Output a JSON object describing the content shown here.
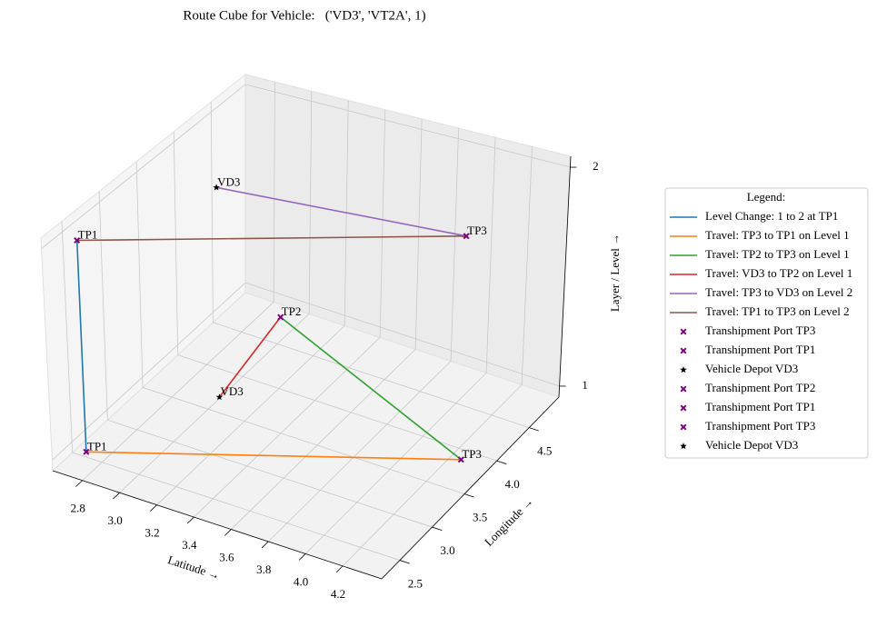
{
  "chart_data": {
    "type": "line3d",
    "title": "Route Cube for Vehicle:   ('VD3', 'VT2A', 1)",
    "xlabel": "Latitude →",
    "ylabel": "Longitude →",
    "zlabel": "Layer / Level →",
    "xlim": [
      2.64,
      4.41
    ],
    "ylim": [
      2.22,
      4.96
    ],
    "zlim": [
      0.95,
      2.05
    ],
    "xticks": [
      2.8,
      {
        "value": 3,
        "label": "3.0"
      },
      3.2,
      3.4,
      3.6,
      3.8,
      {
        "value": 4,
        "label": "4.0"
      },
      4.2
    ],
    "yticks": [
      2.5,
      {
        "value": 3,
        "label": "3.0"
      },
      3.5,
      {
        "value": 4,
        "label": "4.0"
      },
      4.5
    ],
    "zticks": [
      1,
      2
    ],
    "grid": true,
    "legend": {
      "title": "Legend:",
      "loc": "center right"
    },
    "series": [
      {
        "name": "Level Change: 1 to 2 at TP1",
        "type": "line",
        "color": "#1f77b4",
        "x": [
          2.74,
          2.74
        ],
        "y": [
          2.44,
          2.44
        ],
        "z": [
          1,
          2
        ]
      },
      {
        "name": "Travel: TP3 to TP1 on Level 1",
        "type": "line",
        "color": "#ff7f0e",
        "x": [
          4.3,
          2.74
        ],
        "y": [
          3.75,
          2.44
        ],
        "z": [
          1,
          1
        ]
      },
      {
        "name": "Travel: TP2 to TP3 on Level 1",
        "type": "line",
        "color": "#2ca02c",
        "x": [
          2.94,
          4.3
        ],
        "y": [
          4.7,
          3.75
        ],
        "z": [
          1,
          1
        ]
      },
      {
        "name": "Travel: VD3 to TP2 on Level 1",
        "type": "line",
        "color": "#d62728",
        "x": [
          3.04,
          2.94
        ],
        "y": [
          3.56,
          4.7
        ],
        "z": [
          1,
          1
        ]
      },
      {
        "name": "Travel: TP3 to VD3 on Level 2",
        "type": "line",
        "color": "#9467bd",
        "x": [
          4.3,
          3.04
        ],
        "y": [
          3.75,
          3.56
        ],
        "z": [
          2,
          2
        ]
      },
      {
        "name": "Travel: TP1 to TP3 on Level 2",
        "type": "line",
        "color": "#8c564b",
        "x": [
          2.74,
          4.3
        ],
        "y": [
          2.44,
          3.75
        ],
        "z": [
          2,
          2
        ]
      },
      {
        "name": "Transhipment Port TP3",
        "type": "scatter",
        "marker": "X",
        "color": "#800080",
        "x": [
          4.3
        ],
        "y": [
          3.75
        ],
        "z": [
          2
        ],
        "label": "TP3"
      },
      {
        "name": "Transhipment Port TP1",
        "type": "scatter",
        "marker": "X",
        "color": "#800080",
        "x": [
          2.74
        ],
        "y": [
          2.44
        ],
        "z": [
          2
        ],
        "label": "TP1"
      },
      {
        "name": "Vehicle Depot VD3",
        "type": "scatter",
        "marker": "star",
        "color": "#000000",
        "x": [
          3.04
        ],
        "y": [
          3.56
        ],
        "z": [
          2
        ],
        "label": "VD3"
      },
      {
        "name": "Transhipment Port TP2",
        "type": "scatter",
        "marker": "X",
        "color": "#800080",
        "x": [
          2.94
        ],
        "y": [
          4.7
        ],
        "z": [
          1
        ],
        "label": "TP2"
      },
      {
        "name": "Transhipment Port TP1",
        "type": "scatter",
        "marker": "X",
        "color": "#800080",
        "x": [
          2.74
        ],
        "y": [
          2.44
        ],
        "z": [
          1
        ],
        "label": "TP1"
      },
      {
        "name": "Transhipment Port TP3",
        "type": "scatter",
        "marker": "X",
        "color": "#800080",
        "x": [
          4.3
        ],
        "y": [
          3.75
        ],
        "z": [
          1
        ],
        "label": "TP3"
      },
      {
        "name": "Vehicle Depot VD3",
        "type": "scatter",
        "marker": "star",
        "color": "#000000",
        "x": [
          3.04
        ],
        "y": [
          3.56
        ],
        "z": [
          1
        ],
        "label": "VD3"
      }
    ]
  }
}
